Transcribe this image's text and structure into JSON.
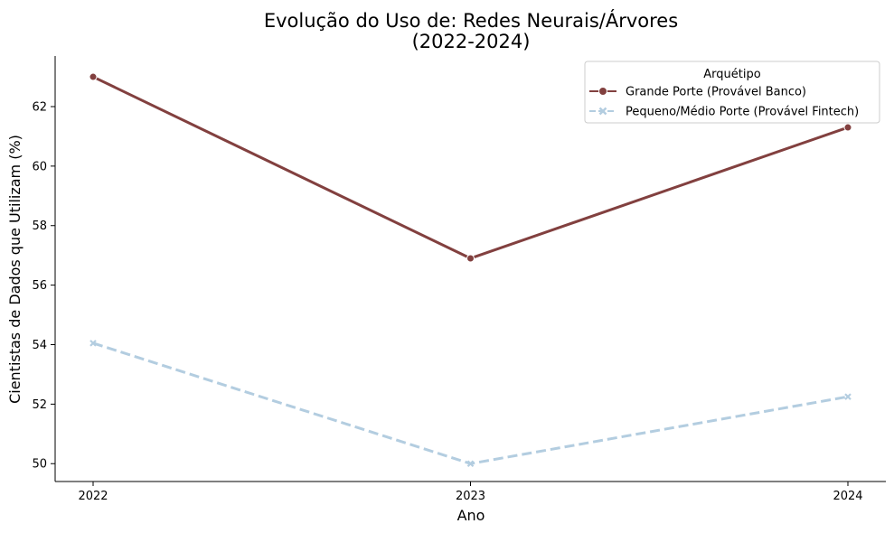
{
  "chart_data": {
    "type": "line",
    "title": "Evolução do Uso de: Redes Neurais/Árvores",
    "subtitle": "(2022-2024)",
    "xlabel": "Ano",
    "ylabel": "Cientistas de Dados que Utilizam (%)",
    "x": [
      "2022",
      "2023",
      "2024"
    ],
    "ylim": [
      49.4,
      63.7
    ],
    "yticks": [
      "50",
      "52",
      "54",
      "56",
      "58",
      "60",
      "62"
    ],
    "grid": false,
    "legend": {
      "title": "Arquétipo",
      "placement": "top-right"
    },
    "series": [
      {
        "name": "Grande Porte (Provável Banco)",
        "values": [
          63.0,
          56.9,
          61.3
        ],
        "color": "#82403f",
        "dash": "solid",
        "marker": "circle"
      },
      {
        "name": "Pequeno/Médio Porte (Provável Fintech)",
        "values": [
          54.05,
          50.0,
          52.25
        ],
        "color": "#b3cde0",
        "dash": "dashed",
        "marker": "x"
      }
    ]
  }
}
